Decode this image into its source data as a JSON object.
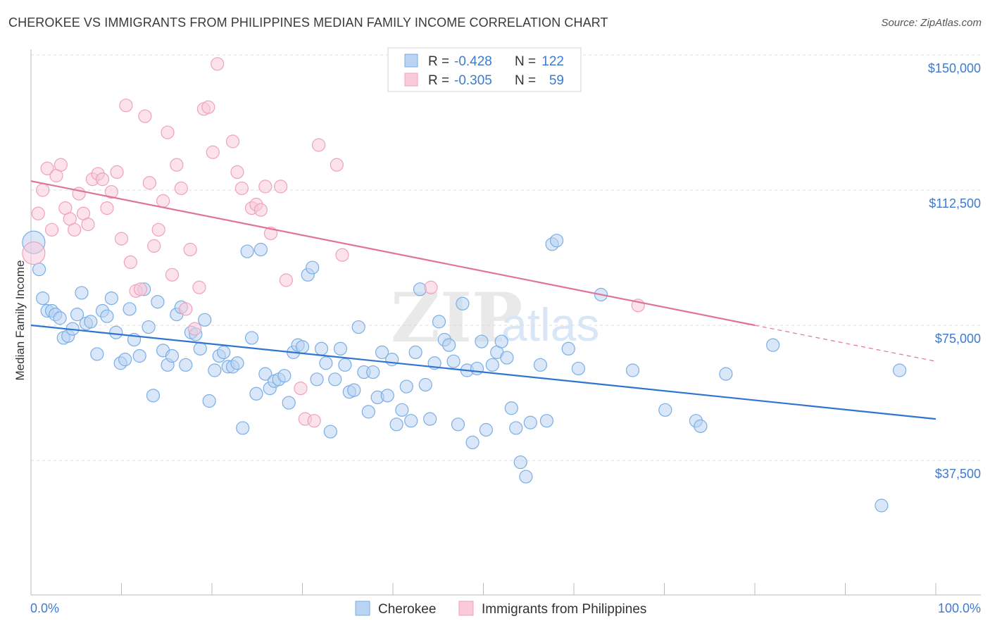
{
  "title": "CHEROKEE VS IMMIGRANTS FROM PHILIPPINES MEDIAN FAMILY INCOME CORRELATION CHART",
  "source": "Source: ZipAtlas.com",
  "watermark": {
    "zip": "ZIP",
    "atlas": "atlas"
  },
  "stats": [
    {
      "r_label": "R =",
      "r": "-0.428",
      "n_label": "N =",
      "n": "122"
    },
    {
      "r_label": "R =",
      "r": "-0.305",
      "n_label": "N =",
      "n": "59"
    }
  ],
  "chart_data": {
    "type": "scatter",
    "title": "CHEROKEE VS IMMIGRANTS FROM PHILIPPINES MEDIAN FAMILY INCOME CORRELATION CHART",
    "xlabel": "",
    "ylabel": "Median Family Income",
    "xlim": [
      0,
      100
    ],
    "ylim": [
      0,
      155000
    ],
    "x_tick_labels": [
      "0.0%",
      "100.0%"
    ],
    "y_ticks": [
      37500,
      75000,
      112500,
      150000
    ],
    "y_tick_labels": [
      "$37,500",
      "$75,000",
      "$112,500",
      "$150,000"
    ],
    "grid": true,
    "legend_position": "bottom",
    "series": [
      {
        "name": "Cherokee",
        "color": "#7aaee6",
        "fill": "#b9d4f3",
        "trend": {
          "x": [
            0,
            100
          ],
          "y": [
            75000,
            49000
          ],
          "color": "#2f74d0"
        },
        "points": [
          [
            0.3,
            98000
          ],
          [
            0.9,
            90500
          ],
          [
            1.3,
            82500
          ],
          [
            1.8,
            79000
          ],
          [
            2.3,
            79000
          ],
          [
            2.7,
            78000
          ],
          [
            3.2,
            77000
          ],
          [
            3.6,
            71500
          ],
          [
            4.1,
            72000
          ],
          [
            4.6,
            74000
          ],
          [
            5.1,
            78000
          ],
          [
            5.6,
            84000
          ],
          [
            6.1,
            75500
          ],
          [
            6.6,
            76000
          ],
          [
            7.3,
            67000
          ],
          [
            7.9,
            79000
          ],
          [
            8.4,
            77500
          ],
          [
            8.9,
            82500
          ],
          [
            9.4,
            73000
          ],
          [
            9.9,
            64500
          ],
          [
            10.4,
            65500
          ],
          [
            10.9,
            79500
          ],
          [
            11.4,
            71000
          ],
          [
            12.0,
            66500
          ],
          [
            12.5,
            85000
          ],
          [
            13.0,
            74500
          ],
          [
            13.5,
            55500
          ],
          [
            14.0,
            81500
          ],
          [
            14.6,
            68000
          ],
          [
            15.1,
            64000
          ],
          [
            15.6,
            66500
          ],
          [
            16.1,
            78000
          ],
          [
            16.6,
            80000
          ],
          [
            17.1,
            64000
          ],
          [
            17.7,
            73000
          ],
          [
            18.2,
            72500
          ],
          [
            18.7,
            68500
          ],
          [
            19.2,
            76500
          ],
          [
            19.7,
            54000
          ],
          [
            20.3,
            62500
          ],
          [
            20.8,
            66500
          ],
          [
            21.3,
            67500
          ],
          [
            21.8,
            63500
          ],
          [
            22.3,
            63500
          ],
          [
            22.8,
            64500
          ],
          [
            23.4,
            46500
          ],
          [
            23.9,
            95500
          ],
          [
            24.4,
            71500
          ],
          [
            24.9,
            56000
          ],
          [
            25.4,
            96000
          ],
          [
            25.9,
            61500
          ],
          [
            26.4,
            57500
          ],
          [
            26.9,
            59500
          ],
          [
            27.4,
            60000
          ],
          [
            28.0,
            61000
          ],
          [
            28.5,
            53500
          ],
          [
            29.0,
            67500
          ],
          [
            29.5,
            69500
          ],
          [
            30.0,
            69000
          ],
          [
            30.6,
            89000
          ],
          [
            31.1,
            91000
          ],
          [
            31.6,
            60000
          ],
          [
            32.1,
            68500
          ],
          [
            32.6,
            64500
          ],
          [
            33.1,
            45500
          ],
          [
            33.6,
            60000
          ],
          [
            34.2,
            68500
          ],
          [
            34.7,
            64000
          ],
          [
            35.2,
            56500
          ],
          [
            35.7,
            57000
          ],
          [
            36.2,
            74500
          ],
          [
            36.8,
            62000
          ],
          [
            37.3,
            51000
          ],
          [
            37.8,
            62000
          ],
          [
            38.3,
            55000
          ],
          [
            38.8,
            67500
          ],
          [
            39.4,
            55500
          ],
          [
            39.9,
            65500
          ],
          [
            40.4,
            47500
          ],
          [
            41.0,
            51500
          ],
          [
            41.5,
            58000
          ],
          [
            42.0,
            48500
          ],
          [
            42.5,
            67500
          ],
          [
            43.0,
            85000
          ],
          [
            43.6,
            58500
          ],
          [
            44.1,
            49000
          ],
          [
            44.6,
            64500
          ],
          [
            45.1,
            76000
          ],
          [
            45.7,
            71000
          ],
          [
            46.2,
            69500
          ],
          [
            46.7,
            65000
          ],
          [
            47.2,
            47500
          ],
          [
            47.7,
            81000
          ],
          [
            48.2,
            62500
          ],
          [
            48.8,
            42500
          ],
          [
            49.3,
            63000
          ],
          [
            49.8,
            70500
          ],
          [
            50.3,
            46000
          ],
          [
            51.0,
            64000
          ],
          [
            51.5,
            67500
          ],
          [
            52.0,
            70500
          ],
          [
            52.6,
            66000
          ],
          [
            53.1,
            52000
          ],
          [
            53.6,
            46500
          ],
          [
            54.1,
            37000
          ],
          [
            54.7,
            33000
          ],
          [
            55.2,
            48000
          ],
          [
            56.3,
            64000
          ],
          [
            57.0,
            48500
          ],
          [
            57.6,
            97500
          ],
          [
            58.1,
            98500
          ],
          [
            59.4,
            68500
          ],
          [
            60.5,
            63000
          ],
          [
            63.0,
            83500
          ],
          [
            66.5,
            62500
          ],
          [
            70.1,
            51500
          ],
          [
            73.5,
            48500
          ],
          [
            74.0,
            47000
          ],
          [
            76.8,
            61500
          ],
          [
            82.0,
            69500
          ],
          [
            94.0,
            25000
          ],
          [
            96.0,
            62500
          ]
        ]
      },
      {
        "name": "Immigrants from Philippines",
        "color": "#f0a1bd",
        "fill": "#f8cadb",
        "trend": {
          "x": [
            0,
            80
          ],
          "y": [
            115000,
            75000
          ],
          "color": "#e0739a",
          "dashed_to": [
            100,
            65000
          ]
        },
        "points": [
          [
            0.3,
            95000
          ],
          [
            0.8,
            106000
          ],
          [
            1.3,
            112500
          ],
          [
            1.8,
            118500
          ],
          [
            2.3,
            101500
          ],
          [
            2.8,
            116500
          ],
          [
            3.3,
            119500
          ],
          [
            3.8,
            107500
          ],
          [
            4.3,
            104500
          ],
          [
            4.8,
            101500
          ],
          [
            5.3,
            111500
          ],
          [
            5.8,
            106000
          ],
          [
            6.3,
            103000
          ],
          [
            6.8,
            115500
          ],
          [
            7.4,
            117000
          ],
          [
            7.9,
            115500
          ],
          [
            8.4,
            107500
          ],
          [
            8.9,
            112000
          ],
          [
            9.5,
            117500
          ],
          [
            10.0,
            99000
          ],
          [
            10.5,
            136000
          ],
          [
            11.0,
            92500
          ],
          [
            11.6,
            84500
          ],
          [
            12.1,
            85000
          ],
          [
            12.6,
            133000
          ],
          [
            13.1,
            114500
          ],
          [
            13.6,
            97000
          ],
          [
            14.1,
            101500
          ],
          [
            14.6,
            109500
          ],
          [
            15.1,
            128500
          ],
          [
            15.6,
            89000
          ],
          [
            16.1,
            119500
          ],
          [
            16.6,
            113000
          ],
          [
            17.1,
            79500
          ],
          [
            17.6,
            96000
          ],
          [
            18.1,
            74000
          ],
          [
            18.6,
            85500
          ],
          [
            19.1,
            135000
          ],
          [
            19.6,
            135500
          ],
          [
            20.1,
            123000
          ],
          [
            20.6,
            147500
          ],
          [
            22.3,
            126000
          ],
          [
            22.8,
            117500
          ],
          [
            23.3,
            113000
          ],
          [
            24.4,
            107500
          ],
          [
            24.9,
            108500
          ],
          [
            25.4,
            107000
          ],
          [
            25.9,
            113500
          ],
          [
            26.5,
            100500
          ],
          [
            27.6,
            113500
          ],
          [
            28.2,
            87500
          ],
          [
            29.8,
            57500
          ],
          [
            30.3,
            49000
          ],
          [
            31.3,
            48500
          ],
          [
            31.8,
            125000
          ],
          [
            33.8,
            119500
          ],
          [
            34.4,
            94500
          ],
          [
            44.2,
            85500
          ],
          [
            67.1,
            80500
          ]
        ]
      }
    ]
  }
}
